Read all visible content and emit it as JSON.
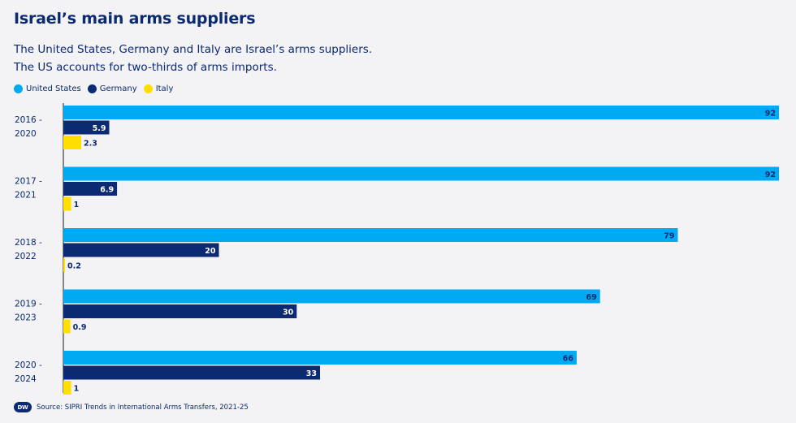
{
  "header": {
    "title": "Israel’s main arms suppliers",
    "subtitle_line1": "The United States, Germany and Italy are Israel’s arms suppliers.",
    "subtitle_line2": "The US accounts for two-thirds of arms imports."
  },
  "footer": {
    "logo_text": "DW",
    "source": "Source: SIPRI Trends in International Arms Transfers, 2021-25"
  },
  "chart_data": {
    "type": "bar",
    "orientation": "horizontal",
    "categories": [
      [
        "2016 -",
        "2020"
      ],
      [
        "2017 -",
        "2021"
      ],
      [
        "2018 -",
        "2022"
      ],
      [
        "2019 -",
        "2023"
      ],
      [
        "2020 -",
        "2024"
      ]
    ],
    "series": [
      {
        "name": "United States",
        "color": "#00aaf2",
        "values": [
          92,
          92,
          79,
          69,
          66
        ],
        "labels": [
          "92",
          "92",
          "79",
          "69",
          "66"
        ]
      },
      {
        "name": "Germany",
        "color": "#0a2a72",
        "values": [
          5.9,
          6.9,
          20,
          30,
          33
        ],
        "labels": [
          "5.9",
          "6.9",
          "20",
          "30",
          "33"
        ]
      },
      {
        "name": "Italy",
        "color": "#ffde00",
        "values": [
          2.3,
          1,
          0.2,
          0.9,
          1
        ],
        "labels": [
          "2.3",
          "1",
          "0.2",
          "0.9",
          "1"
        ]
      }
    ],
    "xlim": [
      0,
      92
    ],
    "grid": false,
    "legend_position": "top-left"
  }
}
